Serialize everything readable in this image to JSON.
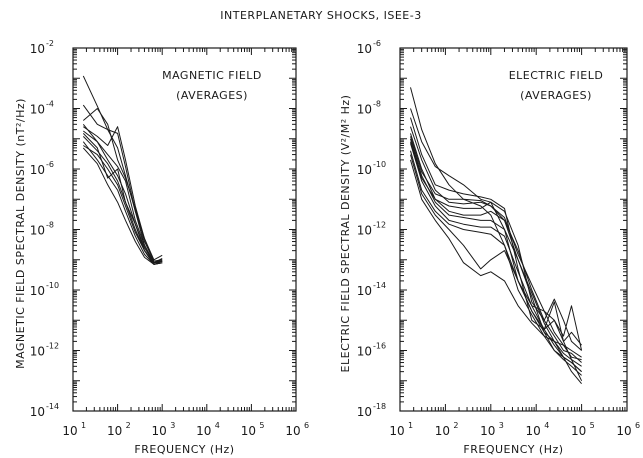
{
  "figure_title": "INTERPLANETARY SHOCKS, ISEE-3",
  "chart_data": [
    {
      "type": "line",
      "ylabel": "MAGNETIC FIELD SPECTRAL DENSITY (nT²/Hz)",
      "xlabel": "FREQUENCY (Hz)",
      "annotation_line1": "MAGNETIC FIELD",
      "annotation_line2": "(AVERAGES)",
      "x_scale": "log",
      "y_scale": "log",
      "xlim": [
        10,
        1000000
      ],
      "ylim": [
        1e-14,
        0.01
      ],
      "x_ticks": [
        10,
        100,
        1000,
        10000,
        100000,
        1000000
      ],
      "x_tick_labels": [
        {
          "b": "10",
          "e": "1"
        },
        {
          "b": "10",
          "e": "2"
        },
        {
          "b": "10",
          "e": "3"
        },
        {
          "b": "10",
          "e": "4"
        },
        {
          "b": "10",
          "e": "5"
        },
        {
          "b": "10",
          "e": "6"
        }
      ],
      "y_ticks": [
        0.01,
        0.0001,
        1e-06,
        1e-08,
        1e-10,
        1e-12,
        1e-14
      ],
      "y_tick_labels": [
        {
          "b": "10",
          "e": "-2"
        },
        {
          "b": "10",
          "e": "-4"
        },
        {
          "b": "10",
          "e": "-6"
        },
        {
          "b": "10",
          "e": "-8"
        },
        {
          "b": "10",
          "e": "-10"
        },
        {
          "b": "10",
          "e": "-12"
        },
        {
          "b": "10",
          "e": "-14"
        }
      ],
      "series": [
        {
          "x": [
            17,
            35,
            60,
            100,
            150,
            250,
            400,
            650,
            1000
          ],
          "y": [
            0.0012,
            0.00012,
            2e-05,
            5e-06,
            6e-07,
            4e-08,
            5e-09,
            1e-09,
            1.4e-09
          ]
        },
        {
          "x": [
            17,
            35,
            60,
            100,
            150,
            250,
            400,
            650,
            1000
          ],
          "y": [
            0.00013,
            3e-05,
            2e-05,
            1.5e-05,
            1.2e-06,
            4e-08,
            3e-09,
            8e-10,
            1.1e-09
          ]
        },
        {
          "x": [
            17,
            35,
            60,
            100,
            150,
            250,
            400,
            650,
            1000
          ],
          "y": [
            4e-05,
            0.0001,
            3e-05,
            2e-06,
            5e-07,
            5e-08,
            4e-09,
            9e-10,
            1e-09
          ]
        },
        {
          "x": [
            17,
            35,
            60,
            100,
            150,
            250,
            400,
            650,
            1000
          ],
          "y": [
            2.5e-05,
            1.2e-05,
            6e-06,
            2.5e-05,
            2e-06,
            6e-08,
            5e-09,
            8e-10,
            1e-09
          ]
        },
        {
          "x": [
            17,
            35,
            60,
            100,
            150,
            250,
            400,
            650,
            1000
          ],
          "y": [
            1.8e-05,
            8e-06,
            3e-06,
            1.2e-06,
            4e-07,
            2e-08,
            3e-09,
            8e-10,
            9e-10
          ]
        },
        {
          "x": [
            17,
            35,
            60,
            100,
            150,
            250,
            400,
            650,
            1000
          ],
          "y": [
            1.2e-05,
            4e-06,
            1.5e-06,
            4e-07,
            8e-08,
            1e-08,
            2e-09,
            7e-10,
            9e-10
          ]
        },
        {
          "x": [
            17,
            35,
            60,
            100,
            150,
            250,
            400,
            650,
            1000
          ],
          "y": [
            8e-06,
            2e-06,
            6e-07,
            2e-07,
            4e-08,
            6e-09,
            1.5e-09,
            7e-10,
            8e-10
          ]
        },
        {
          "x": [
            17,
            35,
            60,
            100,
            150,
            250,
            400,
            650,
            1000
          ],
          "y": [
            5e-06,
            1.5e-06,
            3e-07,
            8e-08,
            2e-08,
            4e-09,
            1.2e-09,
            7e-10,
            8e-10
          ]
        },
        {
          "x": [
            17,
            35,
            60,
            100,
            150,
            250,
            400,
            650,
            1000
          ],
          "y": [
            1.5e-05,
            5e-06,
            5e-07,
            1e-06,
            8e-08,
            1.5e-08,
            2.5e-09,
            8e-10,
            9e-10
          ]
        },
        {
          "x": [
            17,
            35,
            60,
            100,
            150,
            250,
            400,
            650,
            1000
          ],
          "y": [
            6e-06,
            3e-06,
            1e-06,
            3e-07,
            6e-08,
            8e-09,
            2e-09,
            7e-10,
            8e-10
          ]
        },
        {
          "x": [
            17,
            35,
            60,
            100,
            150,
            250,
            400,
            650,
            1000
          ],
          "y": [
            3e-05,
            8e-06,
            2e-06,
            6e-07,
            1.5e-07,
            1.5e-08,
            2e-09,
            8e-10,
            9e-10
          ]
        }
      ]
    },
    {
      "type": "line",
      "ylabel": "ELECTRIC FIELD SPECTRAL DENSITY (V²/M² Hz)",
      "xlabel": "FREQUENCY (Hz)",
      "annotation_line1": "ELECTRIC FIELD",
      "annotation_line2": "(AVERAGES)",
      "x_scale": "log",
      "y_scale": "log",
      "xlim": [
        10,
        1000000
      ],
      "ylim": [
        1e-18,
        1e-06
      ],
      "x_ticks": [
        10,
        100,
        1000,
        10000,
        100000,
        1000000
      ],
      "x_tick_labels": [
        {
          "b": "10",
          "e": "1"
        },
        {
          "b": "10",
          "e": "2"
        },
        {
          "b": "10",
          "e": "3"
        },
        {
          "b": "10",
          "e": "4"
        },
        {
          "b": "10",
          "e": "5"
        },
        {
          "b": "10",
          "e": "6"
        }
      ],
      "y_ticks": [
        1e-06,
        1e-08,
        1e-10,
        1e-12,
        1e-14,
        1e-16,
        1e-18
      ],
      "y_tick_labels": [
        {
          "b": "10",
          "e": "-6"
        },
        {
          "b": "10",
          "e": "-8"
        },
        {
          "b": "10",
          "e": "-10"
        },
        {
          "b": "10",
          "e": "-12"
        },
        {
          "b": "10",
          "e": "-14"
        },
        {
          "b": "10",
          "e": "-16"
        },
        {
          "b": "10",
          "e": "-18"
        }
      ],
      "series": [
        {
          "x": [
            17,
            30,
            60,
            120,
            250,
            600,
            1000,
            2000,
            4000,
            8000,
            15000,
            25000,
            40000,
            60000,
            100000
          ],
          "y": [
            5e-08,
            2e-09,
            1.5e-10,
            3e-11,
            1e-11,
            6e-12,
            3e-12,
            3e-13,
            1e-14,
            1.5e-15,
            3e-16,
            1e-16,
            6e-17,
            4e-17,
            2e-17
          ]
        },
        {
          "x": [
            17,
            30,
            60,
            120,
            250,
            600,
            1000,
            2000,
            4000,
            8000,
            15000,
            25000,
            40000,
            60000,
            100000
          ],
          "y": [
            1e-08,
            8e-10,
            1.2e-10,
            6e-11,
            3e-11,
            1e-11,
            8e-12,
            1e-12,
            2e-14,
            2e-15,
            5e-16,
            4e-15,
            2e-16,
            4e-16,
            1.5e-16
          ]
        },
        {
          "x": [
            17,
            30,
            60,
            120,
            250,
            600,
            1000,
            2000,
            4000,
            8000,
            15000,
            25000,
            40000,
            60000,
            100000
          ],
          "y": [
            5e-09,
            3e-10,
            3e-11,
            2e-11,
            1.5e-11,
            1.2e-11,
            1e-11,
            5e-12,
            5e-14,
            1e-15,
            5e-16,
            1e-15,
            3e-16,
            3e-15,
            1e-16
          ]
        },
        {
          "x": [
            17,
            30,
            60,
            120,
            250,
            600,
            1000,
            2000,
            4000,
            8000,
            15000,
            25000,
            40000,
            60000,
            100000
          ],
          "y": [
            2.5e-09,
            2e-10,
            2e-11,
            8e-12,
            7e-12,
            8e-12,
            6e-12,
            2e-12,
            1e-13,
            6e-15,
            4e-16,
            2e-16,
            1.5e-16,
            6e-17,
            5e-17
          ]
        },
        {
          "x": [
            17,
            30,
            60,
            120,
            250,
            600,
            1000,
            2000,
            4000,
            8000,
            15000,
            25000,
            40000,
            60000,
            100000
          ],
          "y": [
            1.5e-09,
            1e-10,
            1e-11,
            4e-12,
            3e-12,
            3e-12,
            4e-12,
            2e-12,
            2e-13,
            1e-14,
            1e-15,
            3e-16,
            1e-16,
            8e-17,
            4e-17
          ]
        },
        {
          "x": [
            17,
            30,
            60,
            120,
            250,
            600,
            1000,
            2000,
            4000,
            8000,
            15000,
            25000,
            40000,
            60000,
            100000
          ],
          "y": [
            1e-09,
            6e-11,
            8e-12,
            3e-12,
            2.5e-12,
            2e-12,
            2e-12,
            1e-12,
            1e-13,
            8e-15,
            8e-16,
            2e-16,
            8e-17,
            5e-17,
            3e-17
          ]
        },
        {
          "x": [
            17,
            30,
            60,
            120,
            250,
            600,
            1000,
            2000,
            4000,
            8000,
            15000,
            25000,
            40000,
            60000,
            100000
          ],
          "y": [
            7e-10,
            4e-11,
            6e-12,
            2e-12,
            1.5e-12,
            1.2e-12,
            1.2e-12,
            6e-13,
            4e-14,
            3e-15,
            5e-16,
            1.5e-16,
            6e-17,
            4e-17,
            2e-17
          ]
        },
        {
          "x": [
            17,
            30,
            60,
            120,
            250,
            600,
            1000,
            2000,
            4000,
            8000,
            15000,
            25000,
            40000,
            60000,
            100000
          ],
          "y": [
            4e-10,
            2e-11,
            4e-12,
            1.5e-12,
            1e-12,
            8e-13,
            7e-13,
            3e-13,
            2e-14,
            2e-15,
            4e-16,
            1e-16,
            5e-17,
            3e-17,
            1.5e-17
          ]
        },
        {
          "x": [
            17,
            30,
            60,
            120,
            250,
            600,
            1000,
            2000,
            4000,
            8000,
            15000,
            25000,
            40000,
            60000,
            100000
          ],
          "y": [
            3e-10,
            1.5e-11,
            3e-12,
            1e-12,
            3e-13,
            5e-14,
            1e-13,
            2e-13,
            2e-14,
            3e-15,
            2e-15,
            1e-15,
            2e-16,
            5e-17,
            1e-17
          ]
        },
        {
          "x": [
            17,
            30,
            60,
            120,
            250,
            600,
            1000,
            2000,
            4000,
            8000,
            15000,
            25000,
            40000,
            60000,
            100000
          ],
          "y": [
            2e-10,
            1e-11,
            2e-12,
            5e-13,
            8e-14,
            3e-14,
            4e-14,
            2e-14,
            3e-15,
            8e-16,
            3e-16,
            2e-16,
            6e-17,
            2e-17,
            8e-18
          ]
        },
        {
          "x": [
            17,
            30,
            60,
            120,
            250,
            600,
            1000,
            2000,
            4000,
            8000,
            15000,
            25000,
            40000,
            60000,
            100000
          ],
          "y": [
            8e-10,
            5e-11,
            1e-11,
            6e-12,
            5e-12,
            5e-12,
            8e-12,
            4e-12,
            3e-13,
            4e-15,
            1e-15,
            5e-15,
            1e-15,
            2e-16,
            1e-16
          ]
        },
        {
          "x": [
            17,
            30,
            60,
            120,
            250,
            600,
            1000,
            2000,
            4000,
            8000,
            15000,
            25000,
            40000,
            60000,
            100000
          ],
          "y": [
            1.2e-09,
            8e-11,
            1.5e-11,
            1e-11,
            1e-11,
            9e-12,
            6e-12,
            2.5e-12,
            1.5e-13,
            1.5e-14,
            2e-15,
            4e-16,
            1.5e-16,
            1e-16,
            6e-17
          ]
        }
      ]
    }
  ]
}
